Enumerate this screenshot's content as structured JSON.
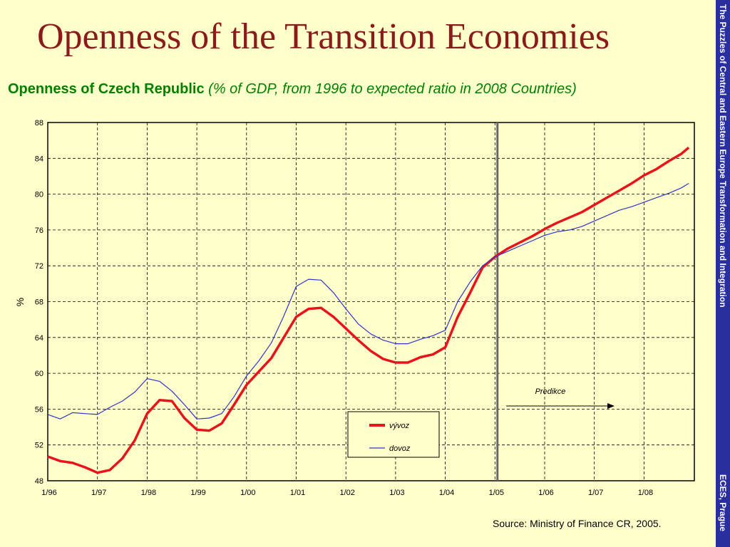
{
  "slide": {
    "title": "Openness of the Transition Economies",
    "subtitle_bold": "Openness of Czech Republic",
    "subtitle_italic": " (% of GDP, from 1996 to expected ratio in 2008 Countries)",
    "side_text": "The Puzzles of Central and Eastern Europe Transformation and Integration",
    "side_text_bottom": "ECES, Prague",
    "source": "Source: Ministry of Finance CR, 2005."
  },
  "colors": {
    "background": "#ffffcc",
    "title": "#8b1a1a",
    "subtitle": "#008000",
    "sidebar": "#2a2fa0",
    "export_line": "#e8141b",
    "import_line": "#3333cc",
    "plot_bg": "#ffffcc"
  },
  "chart_data": {
    "type": "line",
    "ylabel": "%",
    "xlabel": "",
    "ylim": [
      48,
      88
    ],
    "yticks": [
      "48",
      "52",
      "56",
      "60",
      "64",
      "68",
      "72",
      "76",
      "80",
      "84",
      "88"
    ],
    "xlim": [
      1996.0,
      2009.0
    ],
    "xtick_labels": [
      "1/96",
      "1/97",
      "1/98",
      "1/99",
      "1/00",
      "1/01",
      "1/02",
      "1/03",
      "1/04",
      "1/05",
      "1/06",
      "1/07",
      "1/08"
    ],
    "grid": true,
    "forecast_label": "Predikce",
    "forecast_start": 2005.05,
    "legend_position": "bottom-center",
    "series": [
      {
        "name": "vývoz",
        "color": "#e8141b",
        "points": [
          [
            1996.0,
            50.7
          ],
          [
            1996.25,
            50.2
          ],
          [
            1996.5,
            50.0
          ],
          [
            1996.75,
            49.5
          ],
          [
            1997.0,
            48.9
          ],
          [
            1997.25,
            49.2
          ],
          [
            1997.5,
            50.5
          ],
          [
            1997.75,
            52.5
          ],
          [
            1998.0,
            55.5
          ],
          [
            1998.25,
            57.0
          ],
          [
            1998.5,
            56.9
          ],
          [
            1998.75,
            55.0
          ],
          [
            1999.0,
            53.7
          ],
          [
            1999.25,
            53.6
          ],
          [
            1999.5,
            54.4
          ],
          [
            1999.75,
            56.5
          ],
          [
            2000.0,
            58.7
          ],
          [
            2000.25,
            60.2
          ],
          [
            2000.5,
            61.7
          ],
          [
            2000.75,
            64.0
          ],
          [
            2001.0,
            66.3
          ],
          [
            2001.25,
            67.2
          ],
          [
            2001.5,
            67.3
          ],
          [
            2001.75,
            66.3
          ],
          [
            2002.0,
            65.0
          ],
          [
            2002.25,
            63.7
          ],
          [
            2002.5,
            62.5
          ],
          [
            2002.75,
            61.6
          ],
          [
            2003.0,
            61.2
          ],
          [
            2003.25,
            61.2
          ],
          [
            2003.5,
            61.8
          ],
          [
            2003.75,
            62.1
          ],
          [
            2004.0,
            62.9
          ],
          [
            2004.25,
            66.3
          ],
          [
            2004.5,
            69.0
          ],
          [
            2004.75,
            71.8
          ],
          [
            2005.0,
            73.0
          ],
          [
            2005.25,
            73.9
          ],
          [
            2005.5,
            74.6
          ],
          [
            2005.75,
            75.3
          ],
          [
            2006.0,
            76.1
          ],
          [
            2006.25,
            76.8
          ],
          [
            2006.5,
            77.4
          ],
          [
            2006.75,
            78.0
          ],
          [
            2007.0,
            78.8
          ],
          [
            2007.25,
            79.6
          ],
          [
            2007.5,
            80.4
          ],
          [
            2007.75,
            81.2
          ],
          [
            2008.0,
            82.1
          ],
          [
            2008.25,
            82.8
          ],
          [
            2008.5,
            83.7
          ],
          [
            2008.75,
            84.5
          ],
          [
            2008.9,
            85.2
          ]
        ]
      },
      {
        "name": "dovoz",
        "color": "#3333cc",
        "points": [
          [
            1996.0,
            55.4
          ],
          [
            1996.25,
            54.9
          ],
          [
            1996.5,
            55.6
          ],
          [
            1996.75,
            55.5
          ],
          [
            1997.0,
            55.4
          ],
          [
            1997.25,
            56.2
          ],
          [
            1997.5,
            56.9
          ],
          [
            1997.75,
            57.9
          ],
          [
            1998.0,
            59.4
          ],
          [
            1998.25,
            59.1
          ],
          [
            1998.5,
            58.0
          ],
          [
            1998.75,
            56.5
          ],
          [
            1999.0,
            54.9
          ],
          [
            1999.25,
            55.0
          ],
          [
            1999.5,
            55.5
          ],
          [
            1999.75,
            57.4
          ],
          [
            2000.0,
            59.7
          ],
          [
            2000.25,
            61.4
          ],
          [
            2000.5,
            63.4
          ],
          [
            2000.75,
            66.4
          ],
          [
            2001.0,
            69.7
          ],
          [
            2001.25,
            70.5
          ],
          [
            2001.5,
            70.4
          ],
          [
            2001.75,
            69.0
          ],
          [
            2002.0,
            67.2
          ],
          [
            2002.25,
            65.5
          ],
          [
            2002.5,
            64.4
          ],
          [
            2002.75,
            63.7
          ],
          [
            2003.0,
            63.3
          ],
          [
            2003.25,
            63.3
          ],
          [
            2003.5,
            63.8
          ],
          [
            2003.75,
            64.2
          ],
          [
            2004.0,
            64.8
          ],
          [
            2004.25,
            68.0
          ],
          [
            2004.5,
            70.2
          ],
          [
            2004.75,
            72.0
          ],
          [
            2005.0,
            73.0
          ],
          [
            2005.25,
            73.6
          ],
          [
            2005.5,
            74.2
          ],
          [
            2005.75,
            74.8
          ],
          [
            2006.0,
            75.4
          ],
          [
            2006.25,
            75.8
          ],
          [
            2006.5,
            76.0
          ],
          [
            2006.75,
            76.4
          ],
          [
            2007.0,
            77.0
          ],
          [
            2007.25,
            77.6
          ],
          [
            2007.5,
            78.2
          ],
          [
            2007.75,
            78.6
          ],
          [
            2008.0,
            79.1
          ],
          [
            2008.25,
            79.6
          ],
          [
            2008.5,
            80.1
          ],
          [
            2008.75,
            80.7
          ],
          [
            2008.9,
            81.2
          ]
        ]
      }
    ]
  }
}
